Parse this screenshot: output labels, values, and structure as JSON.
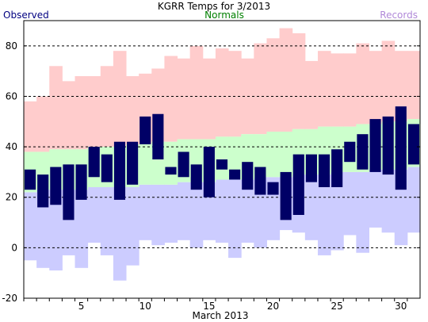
{
  "chart_data": {
    "type": "bar",
    "title": "KGRR Temps for 3/2013",
    "xlabel": "March 2013",
    "ylabel": "",
    "legend": {
      "observed": "Observed",
      "normals": "Normals",
      "records": "Records"
    },
    "colors": {
      "observed": "#000066",
      "observed_label": "#000080",
      "normals": "#ccffcc",
      "normals_label": "#008000",
      "records": "#ffcccc",
      "records_low": "#ccccff",
      "records_label": "#b088d8",
      "grid": "#000000"
    },
    "ylim": [
      -20,
      90
    ],
    "xlim": [
      0.5,
      31.5
    ],
    "yticks": [
      -20,
      0,
      20,
      40,
      60,
      80
    ],
    "xticks": [
      5,
      10,
      15,
      20,
      25,
      30
    ],
    "grid": "horizontal dashed at 20 intervals",
    "days": [
      1,
      2,
      3,
      4,
      5,
      6,
      7,
      8,
      9,
      10,
      11,
      12,
      13,
      14,
      15,
      16,
      17,
      18,
      19,
      20,
      21,
      22,
      23,
      24,
      25,
      26,
      27,
      28,
      29,
      30,
      31
    ],
    "record_high": [
      58,
      60,
      72,
      66,
      68,
      68,
      72,
      78,
      68,
      69,
      71,
      76,
      75,
      80,
      75,
      79,
      78,
      75,
      81,
      83,
      87,
      85,
      74,
      78,
      77,
      77,
      81,
      78,
      82,
      78,
      78
    ],
    "normal_high": [
      38,
      38,
      39,
      39,
      39,
      40,
      40,
      40,
      41,
      41,
      42,
      42,
      43,
      43,
      43,
      44,
      44,
      45,
      45,
      46,
      46,
      47,
      47,
      48,
      48,
      48,
      49,
      49,
      50,
      50,
      51
    ],
    "normal_low": [
      22,
      23,
      23,
      23,
      23,
      24,
      24,
      24,
      24,
      25,
      25,
      25,
      26,
      26,
      26,
      27,
      27,
      27,
      28,
      28,
      28,
      29,
      29,
      29,
      30,
      30,
      30,
      31,
      31,
      31,
      32
    ],
    "record_low": [
      -5,
      -8,
      -9,
      -3,
      -8,
      2,
      -3,
      -13,
      -7,
      3,
      1,
      2,
      3,
      0,
      3,
      2,
      -4,
      2,
      0,
      3,
      7,
      6,
      3,
      -3,
      -1,
      5,
      -2,
      8,
      6,
      1,
      6
    ],
    "observed_high": [
      31,
      29,
      32,
      33,
      33,
      40,
      37,
      42,
      42,
      52,
      53,
      32,
      38,
      33,
      40,
      35,
      31,
      34,
      32,
      26,
      30,
      37,
      37,
      37,
      39,
      42,
      45,
      51,
      52,
      56,
      49
    ],
    "observed_low": [
      23,
      16,
      17,
      11,
      19,
      28,
      26,
      19,
      25,
      41,
      35,
      29,
      28,
      23,
      20,
      31,
      27,
      23,
      21,
      21,
      11,
      13,
      26,
      24,
      24,
      34,
      31,
      30,
      29,
      23,
      33
    ]
  }
}
